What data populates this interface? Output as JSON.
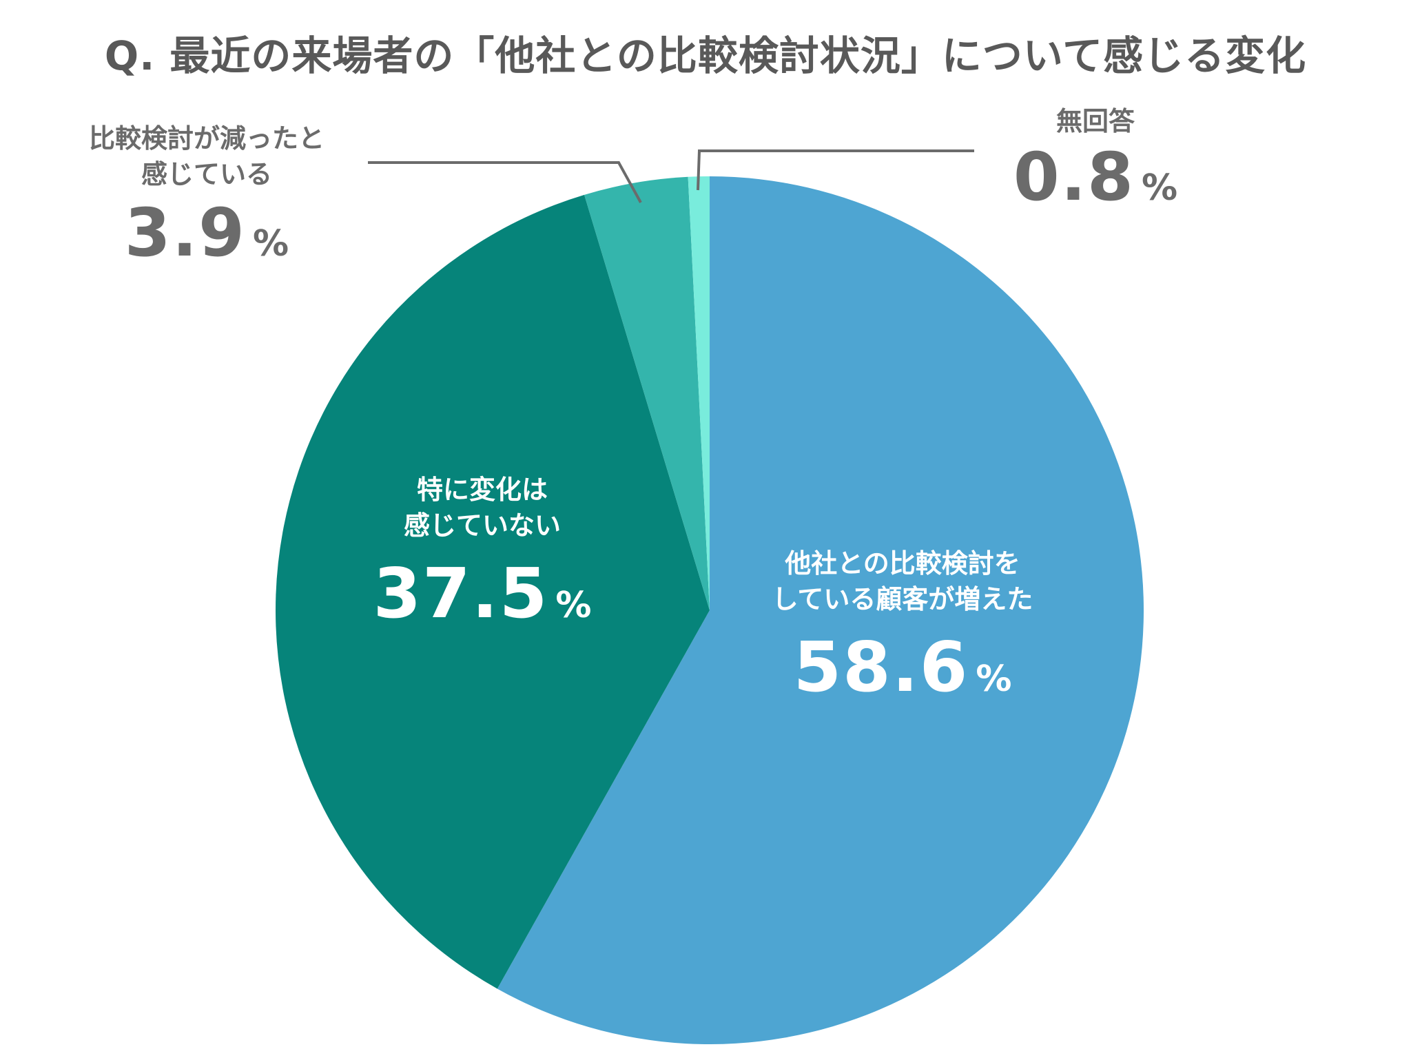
{
  "title": "Q. 最近の来場者の「他社との比較検討状況」について感じる変化",
  "chart_data": {
    "type": "pie",
    "slices": [
      {
        "label_line1": "他社との比較検討を",
        "label_line2": "している顧客が増えた",
        "value": 58.6,
        "value_text": "58.6",
        "unit": "%",
        "color": "#4ea5d2"
      },
      {
        "label_line1": "特に変化は",
        "label_line2": "感じていない",
        "value": 37.5,
        "value_text": "37.5",
        "unit": "%",
        "color": "#06847a"
      },
      {
        "label_line1": "比較検討が減ったと",
        "label_line2": "感じている",
        "value": 3.9,
        "value_text": "3.9",
        "unit": "%",
        "color": "#34b5ac"
      },
      {
        "label_line1": "無回答",
        "label_line2": "",
        "value": 0.8,
        "value_text": "0.8",
        "unit": "%",
        "color": "#79ecdc"
      }
    ]
  }
}
